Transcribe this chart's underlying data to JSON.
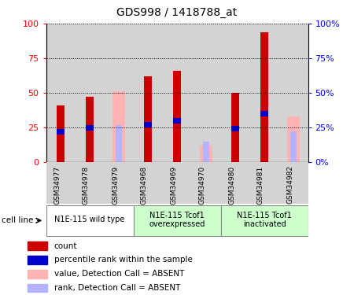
{
  "title": "GDS998 / 1418788_at",
  "samples": [
    "GSM34977",
    "GSM34978",
    "GSM34979",
    "GSM34968",
    "GSM34969",
    "GSM34970",
    "GSM34980",
    "GSM34981",
    "GSM34982"
  ],
  "groups": [
    {
      "label": "N1E-115 wild type",
      "indices": [
        0,
        1,
        2
      ]
    },
    {
      "label": "N1E-115 Tcof1\noverexpressed",
      "indices": [
        3,
        4,
        5
      ]
    },
    {
      "label": "N1E-115 Tcof1\ninactivated",
      "indices": [
        6,
        7,
        8
      ]
    }
  ],
  "count": [
    41,
    47,
    0,
    62,
    66,
    0,
    50,
    94,
    0
  ],
  "percentile": [
    22,
    25,
    0,
    27,
    30,
    0,
    24,
    35,
    0
  ],
  "absent_value": [
    0,
    0,
    51,
    0,
    0,
    12,
    0,
    0,
    33
  ],
  "absent_rank": [
    0,
    0,
    27,
    0,
    0,
    15,
    0,
    0,
    22
  ],
  "is_absent": [
    false,
    false,
    true,
    false,
    false,
    true,
    false,
    false,
    true
  ],
  "color_count": "#cc0000",
  "color_percentile": "#0000cc",
  "color_absent_value": "#ffb3b3",
  "color_absent_rank": "#b3b3ff",
  "group_bg_colors": [
    "#ffffff",
    "#ccffcc",
    "#ccffcc"
  ],
  "col_bg_color": "#d3d3d3",
  "ylim": [
    0,
    100
  ],
  "yticks": [
    0,
    25,
    50,
    75,
    100
  ],
  "ytick_labels_right": [
    "0%",
    "25%",
    "50%",
    "75%",
    "100%"
  ],
  "bar_width": 0.55,
  "legend_items": [
    {
      "label": "count",
      "color": "#cc0000"
    },
    {
      "label": "percentile rank within the sample",
      "color": "#0000cc"
    },
    {
      "label": "value, Detection Call = ABSENT",
      "color": "#ffb3b3"
    },
    {
      "label": "rank, Detection Call = ABSENT",
      "color": "#b3b3ff"
    }
  ],
  "cell_line_label": "cell line"
}
